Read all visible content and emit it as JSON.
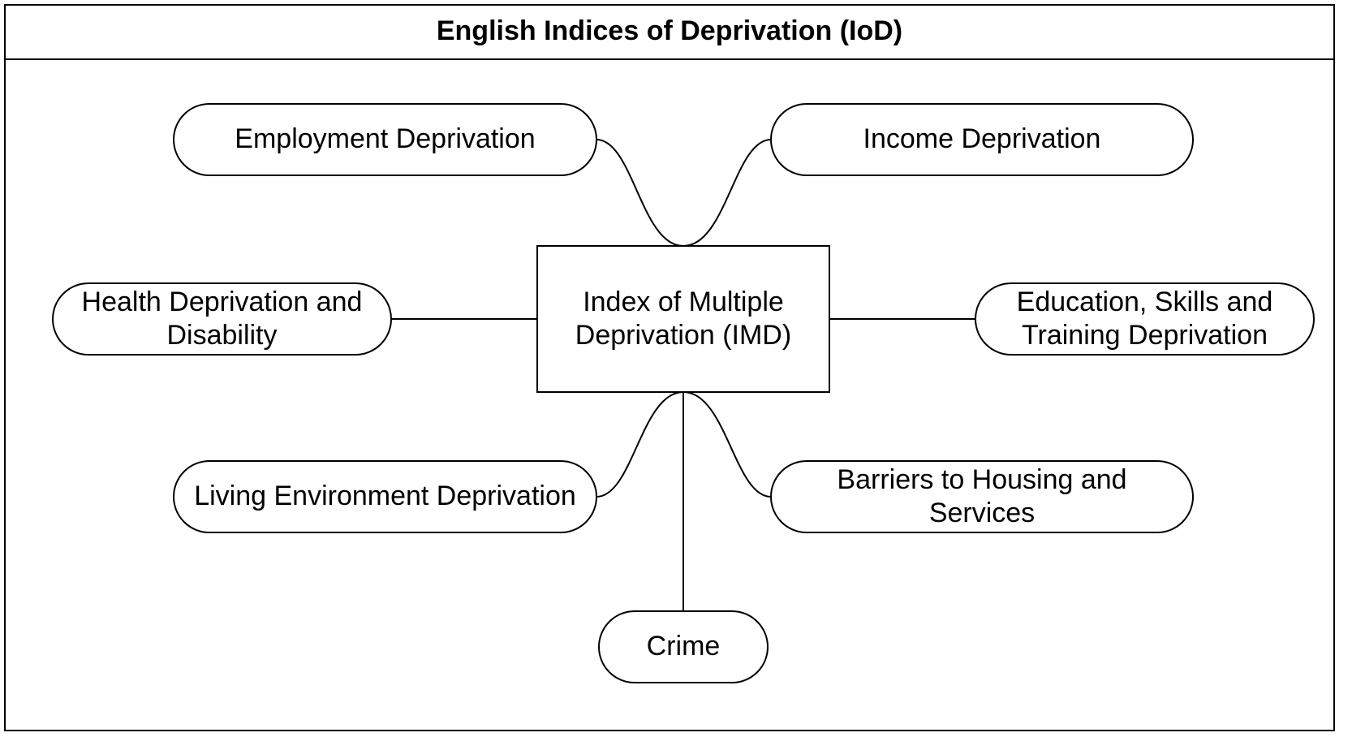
{
  "diagram": {
    "title": "English Indices of Deprivation (IoD)",
    "center": "Index of Multiple Deprivation (IMD)",
    "domains": {
      "employment": "Employment Deprivation",
      "income": "Income Deprivation",
      "health": "Health Deprivation and Disability",
      "education": "Education, Skills and Training Deprivation",
      "living_environment": "Living Environment Deprivation",
      "housing": "Barriers to Housing and Services",
      "crime": "Crime"
    }
  },
  "colors": {
    "stroke": "#000000",
    "background": "#ffffff"
  }
}
